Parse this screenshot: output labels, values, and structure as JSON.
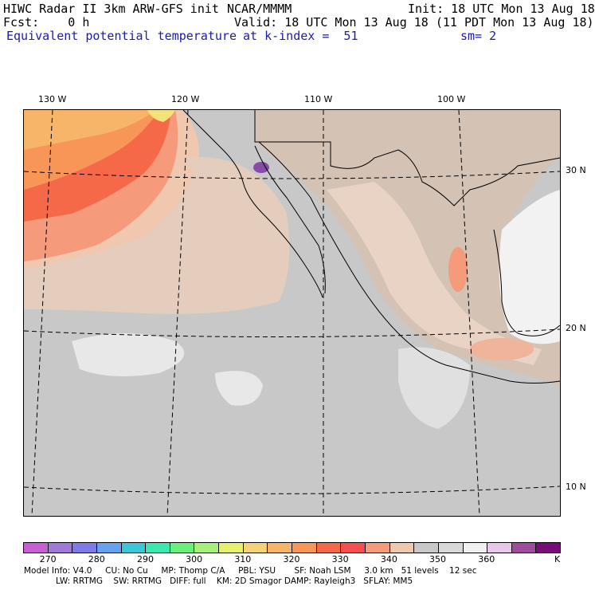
{
  "header": {
    "model": "HIWC Radar II 3km ARW-GFS init",
    "org": "NCAR/MMMM",
    "init": "Init: 18 UTC Mon 13 Aug 18",
    "fcst": "Fcst:    0 h",
    "valid": "Valid: 18 UTC Mon 13 Aug 18 (11 PDT Mon 13 Aug 18)",
    "field": "Equivalent potential temperature",
    "level": "at k-index =  51",
    "smooth": "sm= 2"
  },
  "map": {
    "lon_labels": [
      "130 W",
      "120 W",
      "110 W",
      "100 W"
    ],
    "lat_labels": [
      "30 N",
      "20 N",
      "10 N"
    ]
  },
  "colorbar": {
    "colors": [
      "#c65fcf",
      "#a07ad8",
      "#7e7ae8",
      "#6aa0f0",
      "#3ec6d8",
      "#3ce8b0",
      "#6af07a",
      "#a8f07a",
      "#e8f070",
      "#f5d27a",
      "#f7b56a",
      "#f79656",
      "#f56848",
      "#f55050",
      "#f59a7a",
      "#f0c8b0",
      "#c8c8c8",
      "#d8d8d8",
      "#f0f0f0",
      "#e8c8e8",
      "#a04aa0",
      "#780c78"
    ],
    "ticks": [
      "270",
      "280",
      "290",
      "300",
      "310",
      "320",
      "330",
      "340",
      "350",
      "360",
      "K"
    ]
  },
  "footer": {
    "line1": "Model Info: V4.0     CU: No Cu     MP: Thomp C/A     PBL: YSU       SF: Noah LSM     3.0 km   51 levels    12 sec",
    "line2": "LW: RRTMG    SW: RRTMG   DIFF: full    KM: 2D Smagor DAMP: Rayleigh3   SFLAY: MM5"
  }
}
